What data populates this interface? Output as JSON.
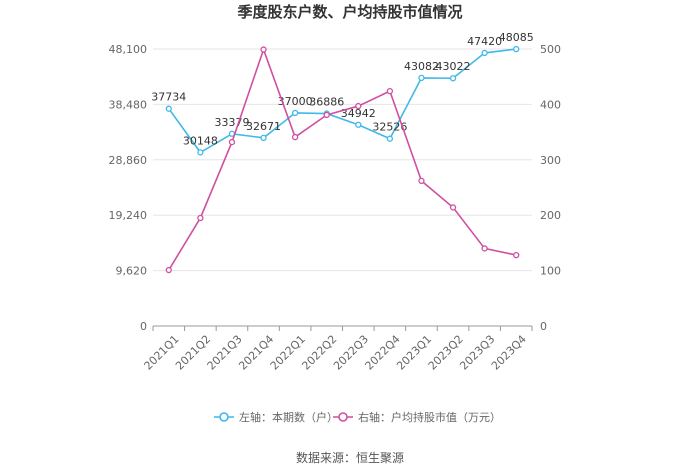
{
  "colors": {
    "left": "#3fb8ea",
    "right": "#d14fa0",
    "grid": "#e6e6e6",
    "axis": "#999999"
  },
  "chart_data": {
    "type": "line",
    "title": "季度股东户数、户均持股市值情况",
    "categories": [
      "2021Q1",
      "2021Q2",
      "2021Q3",
      "2021Q4",
      "2022Q1",
      "2022Q2",
      "2022Q3",
      "2022Q4",
      "2023Q1",
      "2023Q2",
      "2023Q3",
      "2023Q4"
    ],
    "left_axis": {
      "ticks": [
        "0",
        "9,620",
        "19,240",
        "28,860",
        "38,480",
        "48,100"
      ],
      "ylim": [
        0,
        48100
      ]
    },
    "right_axis": {
      "ticks": [
        "0",
        "100",
        "200",
        "300",
        "400",
        "500"
      ],
      "ylim": [
        0,
        500
      ]
    },
    "series": [
      {
        "name": "左轴：本期数（户）",
        "axis": "left",
        "values": [
          37734,
          30148,
          33379,
          32671,
          37000,
          36886,
          34942,
          32526,
          43082,
          43022,
          47420,
          48085
        ],
        "labels": [
          "37734",
          "30148",
          "33379",
          "32671",
          "37000",
          "36886",
          "34942",
          "32526",
          "43082",
          "43022",
          "47420",
          "48085"
        ]
      },
      {
        "name": "右轴：户均持股市值（万元）",
        "axis": "right",
        "values": [
          101,
          195,
          332,
          499,
          341,
          381,
          397,
          424,
          262,
          214,
          140,
          128
        ]
      }
    ],
    "legend_position": "bottom",
    "source": "数据来源：恒生聚源"
  }
}
